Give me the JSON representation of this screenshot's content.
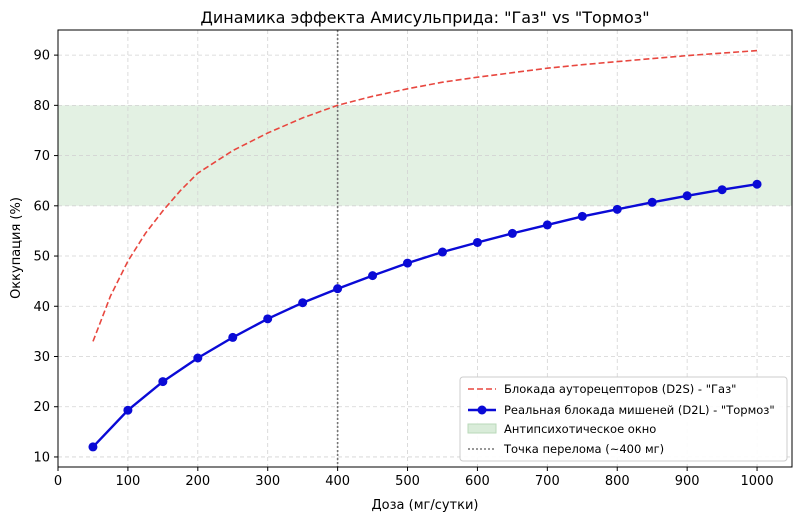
{
  "chart_data": {
    "type": "line",
    "title": "Динамика эффекта Амисульприда: \"Газ\" vs \"Тормоз\"",
    "xlabel": "Доза (мг/сутки)",
    "ylabel": "Оккупация (%)",
    "xlim": [
      0,
      1050
    ],
    "ylim": [
      8,
      95
    ],
    "xticks": [
      0,
      100,
      200,
      300,
      400,
      500,
      600,
      700,
      800,
      900,
      1000
    ],
    "yticks": [
      10,
      20,
      30,
      40,
      50,
      60,
      70,
      80,
      90
    ],
    "grid": true,
    "legend_position": "lower-right",
    "series": [
      {
        "name": "Блокада ауторецепторов (D2S) - \"Газ\"",
        "color": "#e8473f",
        "style": "dashed",
        "marker": "none",
        "x": [
          50,
          75,
          100,
          125,
          150,
          175,
          200,
          250,
          300,
          350,
          400,
          450,
          500,
          550,
          600,
          650,
          700,
          750,
          800,
          850,
          900,
          950,
          1000
        ],
        "values": [
          33,
          42,
          49,
          54.5,
          59,
          63,
          66.5,
          71,
          74.5,
          77.5,
          80,
          81.8,
          83.3,
          84.6,
          85.6,
          86.5,
          87.4,
          88.1,
          88.7,
          89.3,
          89.9,
          90.4,
          90.9
        ]
      },
      {
        "name": "Реальная блокада мишеней (D2L) - \"Тормоз\"",
        "color": "#0a0ad6",
        "style": "solid",
        "marker": "circle",
        "x": [
          50,
          100,
          150,
          200,
          250,
          300,
          350,
          400,
          450,
          500,
          550,
          600,
          650,
          700,
          750,
          800,
          850,
          900,
          950,
          1000
        ],
        "values": [
          12,
          19.3,
          25,
          29.7,
          33.8,
          37.5,
          40.7,
          43.5,
          46.1,
          48.6,
          50.8,
          52.7,
          54.5,
          56.2,
          57.9,
          59.3,
          60.7,
          62,
          63.2,
          64.3
        ]
      }
    ],
    "band": {
      "name": "Антипсихотическое окно",
      "y_from": 60,
      "y_to": 80,
      "color": "#d9ecd9"
    },
    "vline": {
      "name": "Точка перелома (~400 мг)",
      "x": 400,
      "color": "#777777"
    }
  }
}
